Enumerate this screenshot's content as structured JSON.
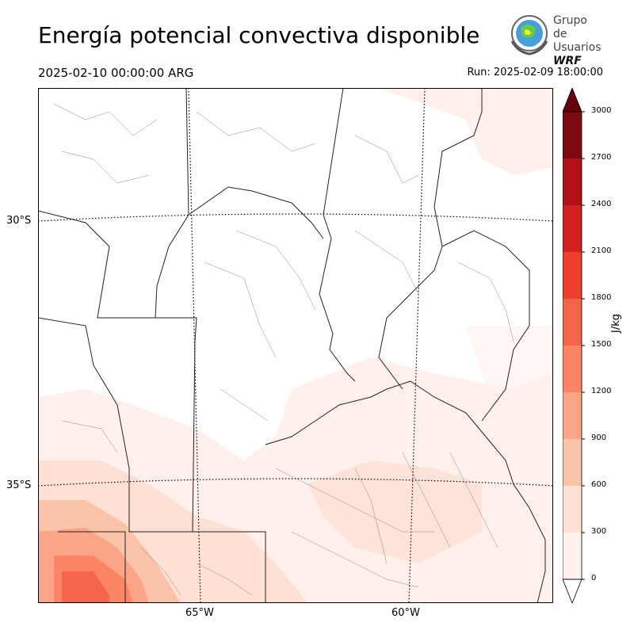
{
  "header": {
    "title": "Energía potencial convectiva disponible",
    "valid_time": "2025-02-10 00:00:00 ARG",
    "run_time": "Run: 2025-02-09 18:00:00"
  },
  "logo": {
    "line1": "Grupo de",
    "line2": "Usuarios",
    "line3": "WRF"
  },
  "map": {
    "lat_labels": [
      "30°S",
      "35°S"
    ],
    "lon_labels": [
      "65°W",
      "60°W"
    ]
  },
  "colorbar": {
    "unit": "J/kg",
    "ticks": [
      "0",
      "300",
      "600",
      "900",
      "1200",
      "1500",
      "1800",
      "2100",
      "2400",
      "2700",
      "3000"
    ],
    "colors": [
      "#fff0eb",
      "#fee0d4",
      "#fcc3ab",
      "#fca487",
      "#fb8565",
      "#f6654b",
      "#ec3f30",
      "#d21f20",
      "#b11218",
      "#7d0913"
    ],
    "over_color": "#67000d",
    "under_color": "#ffffff"
  },
  "chart_data": {
    "type": "heatmap",
    "variable": "CAPE",
    "units": "J/kg",
    "levels": [
      0,
      300,
      600,
      900,
      1200,
      1500,
      1800,
      2100,
      2400,
      2700,
      3000
    ],
    "lat_gridlines": [
      "30°S",
      "35°S"
    ],
    "lon_gridlines": [
      "65°W",
      "60°W"
    ]
  }
}
